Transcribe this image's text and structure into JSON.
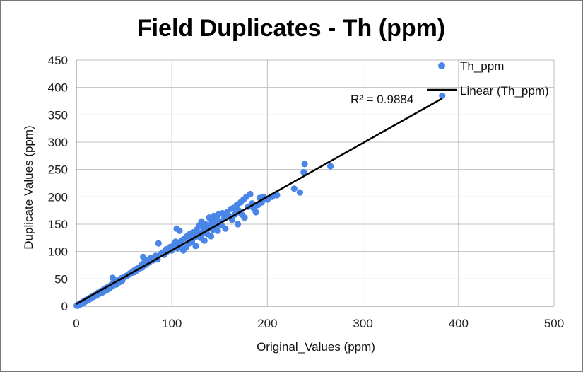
{
  "chart_data": {
    "type": "scatter",
    "title": "Field Duplicates  - Th (ppm)",
    "xlabel": "Original_Values (ppm)",
    "ylabel": "Duplicate Values (ppm)",
    "xlim": [
      0,
      500
    ],
    "ylim": [
      0,
      450
    ],
    "xticks": [
      "0",
      "100",
      "200",
      "300",
      "400",
      "500"
    ],
    "yticks": [
      "0",
      "50",
      "100",
      "150",
      "200",
      "250",
      "300",
      "350",
      "400",
      "450"
    ],
    "grid": true,
    "legend_position": "top-right",
    "colors": {
      "points": "#4a86e8",
      "trendline": "#000000"
    },
    "series": [
      {
        "name": "Th_ppm",
        "points": [
          [
            0.5,
            1
          ],
          [
            1,
            2
          ],
          [
            1.5,
            1
          ],
          [
            2,
            3
          ],
          [
            2.5,
            2
          ],
          [
            3,
            4
          ],
          [
            3.5,
            3
          ],
          [
            4,
            5
          ],
          [
            5,
            6
          ],
          [
            5,
            4
          ],
          [
            6,
            7
          ],
          [
            7,
            6
          ],
          [
            7,
            8
          ],
          [
            8,
            9
          ],
          [
            9,
            8
          ],
          [
            9,
            10
          ],
          [
            10,
            11
          ],
          [
            11,
            10
          ],
          [
            11,
            12
          ],
          [
            12,
            13
          ],
          [
            13,
            12
          ],
          [
            14,
            15
          ],
          [
            15,
            14
          ],
          [
            15,
            16
          ],
          [
            16,
            17
          ],
          [
            17,
            18
          ],
          [
            18,
            17
          ],
          [
            19,
            20
          ],
          [
            20,
            21
          ],
          [
            20,
            19
          ],
          [
            21,
            22
          ],
          [
            22,
            21
          ],
          [
            23,
            25
          ],
          [
            24,
            23
          ],
          [
            25,
            26
          ],
          [
            26,
            28
          ],
          [
            27,
            25
          ],
          [
            28,
            29
          ],
          [
            29,
            31
          ],
          [
            30,
            28
          ],
          [
            31,
            33
          ],
          [
            32,
            30
          ],
          [
            33,
            35
          ],
          [
            34,
            36
          ],
          [
            35,
            33
          ],
          [
            36,
            38
          ],
          [
            37,
            40
          ],
          [
            38,
            37
          ],
          [
            38,
            52
          ],
          [
            39,
            42
          ],
          [
            40,
            41
          ],
          [
            41,
            43
          ],
          [
            42,
            40
          ],
          [
            43,
            46
          ],
          [
            44,
            48
          ],
          [
            45,
            44
          ],
          [
            46,
            49
          ],
          [
            47,
            51
          ],
          [
            48,
            47
          ],
          [
            49,
            52
          ],
          [
            50,
            53
          ],
          [
            52,
            55
          ],
          [
            53,
            56
          ],
          [
            55,
            58
          ],
          [
            56,
            60
          ],
          [
            58,
            61
          ],
          [
            59,
            63
          ],
          [
            60,
            62
          ],
          [
            61,
            66
          ],
          [
            62,
            64
          ],
          [
            63,
            68
          ],
          [
            64,
            67
          ],
          [
            65,
            70
          ],
          [
            66,
            69
          ],
          [
            67,
            72
          ],
          [
            68,
            75
          ],
          [
            69,
            71
          ],
          [
            70,
            78
          ],
          [
            70,
            90
          ],
          [
            72,
            80
          ],
          [
            73,
            76
          ],
          [
            74,
            82
          ],
          [
            75,
            85
          ],
          [
            76,
            80
          ],
          [
            78,
            88
          ],
          [
            80,
            84
          ],
          [
            82,
            90
          ],
          [
            83,
            92
          ],
          [
            85,
            86
          ],
          [
            86,
            115
          ],
          [
            88,
            95
          ],
          [
            90,
            98
          ],
          [
            92,
            94
          ],
          [
            94,
            104
          ],
          [
            95,
            100
          ],
          [
            98,
            108
          ],
          [
            100,
            102
          ],
          [
            102,
            112
          ],
          [
            103,
            110
          ],
          [
            104,
            118
          ],
          [
            105,
            142
          ],
          [
            106,
            106
          ],
          [
            108,
            138
          ],
          [
            109,
            112
          ],
          [
            110,
            120
          ],
          [
            112,
            102
          ],
          [
            113,
            124
          ],
          [
            115,
            108
          ],
          [
            116,
            128
          ],
          [
            118,
            115
          ],
          [
            119,
            132
          ],
          [
            120,
            122
          ],
          [
            121,
            118
          ],
          [
            122,
            135
          ],
          [
            124,
            126
          ],
          [
            125,
            110
          ],
          [
            126,
            140
          ],
          [
            128,
            130
          ],
          [
            129,
            148
          ],
          [
            130,
            125
          ],
          [
            131,
            155
          ],
          [
            132,
            135
          ],
          [
            133,
            142
          ],
          [
            134,
            120
          ],
          [
            135,
            150
          ],
          [
            136,
            138
          ],
          [
            137,
            132
          ],
          [
            138,
            145
          ],
          [
            139,
            162
          ],
          [
            140,
            148
          ],
          [
            141,
            128
          ],
          [
            142,
            155
          ],
          [
            143,
            140
          ],
          [
            144,
            165
          ],
          [
            145,
            152
          ],
          [
            146,
            145
          ],
          [
            147,
            160
          ],
          [
            148,
            138
          ],
          [
            149,
            168
          ],
          [
            150,
            155
          ],
          [
            152,
            148
          ],
          [
            153,
            170
          ],
          [
            155,
            162
          ],
          [
            156,
            142
          ],
          [
            158,
            172
          ],
          [
            160,
            165
          ],
          [
            162,
            178
          ],
          [
            163,
            158
          ],
          [
            165,
            180
          ],
          [
            166,
            168
          ],
          [
            168,
            185
          ],
          [
            169,
            150
          ],
          [
            170,
            175
          ],
          [
            172,
            190
          ],
          [
            173,
            168
          ],
          [
            175,
            195
          ],
          [
            176,
            162
          ],
          [
            178,
            200
          ],
          [
            180,
            182
          ],
          [
            182,
            205
          ],
          [
            184,
            188
          ],
          [
            186,
            178
          ],
          [
            188,
            172
          ],
          [
            190,
            185
          ],
          [
            192,
            198
          ],
          [
            194,
            190
          ],
          [
            196,
            200
          ],
          [
            198,
            196
          ],
          [
            200,
            195
          ],
          [
            205,
            200
          ],
          [
            210,
            203
          ],
          [
            228,
            215
          ],
          [
            234,
            208
          ],
          [
            238,
            245
          ],
          [
            239,
            260
          ],
          [
            266,
            256
          ],
          [
            383,
            385
          ]
        ]
      },
      {
        "name": "Linear (Th_ppm)",
        "line": {
          "x": [
            0,
            383
          ],
          "y": [
            4,
            380
          ]
        }
      }
    ],
    "annotation": "R² = 0.9884"
  }
}
